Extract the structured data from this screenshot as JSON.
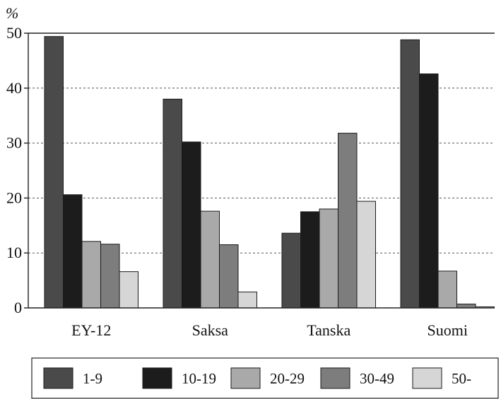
{
  "chart_data": {
    "type": "bar",
    "unit_label": "%",
    "categories": [
      "EY-12",
      "Saksa",
      "Tanska",
      "Suomi"
    ],
    "ylim": [
      0,
      50
    ],
    "yticks": [
      0,
      10,
      20,
      30,
      40,
      50
    ],
    "grid": true,
    "legend_position": "bottom",
    "series": [
      {
        "name": "1-9",
        "color": "#4a4a4a",
        "values": [
          49.4,
          38.0,
          13.6,
          48.8
        ]
      },
      {
        "name": "10-19",
        "color": "#1c1c1c",
        "values": [
          20.6,
          30.2,
          17.5,
          42.6
        ]
      },
      {
        "name": "20-29",
        "color": "#a9a9a9",
        "values": [
          12.1,
          17.6,
          18.0,
          6.7
        ]
      },
      {
        "name": "30-49",
        "color": "#7d7d7d",
        "values": [
          11.6,
          11.5,
          31.8,
          0.7
        ]
      },
      {
        "name": "50-",
        "color": "#d6d6d6",
        "values": [
          6.6,
          2.9,
          19.4,
          0.2
        ]
      }
    ]
  }
}
